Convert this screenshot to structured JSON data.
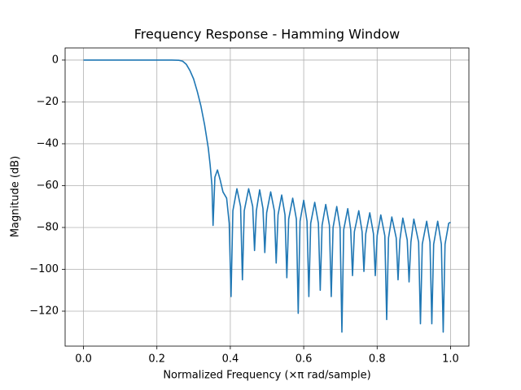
{
  "chart_data": {
    "type": "line",
    "title": "Frequency Response - Hamming Window",
    "x_label": "Normalized Frequency (×π rad/sample)",
    "y_label": "Magnitude (dB)",
    "xlim": [
      -0.05,
      1.05
    ],
    "ylim": [
      -136.7,
      5.8
    ],
    "xticks": [
      {
        "value": 0,
        "label": "0.0"
      },
      0.2,
      0.4,
      0.6,
      0.8,
      {
        "value": 1,
        "label": "1.0"
      }
    ],
    "yticks": [
      {
        "value": -120,
        "label": "−120"
      },
      {
        "value": -100,
        "label": "−100"
      },
      {
        "value": -80,
        "label": "−80"
      },
      {
        "value": -60,
        "label": "−60"
      },
      {
        "value": -40,
        "label": "−40"
      },
      {
        "value": -20,
        "label": "−20"
      },
      0
    ],
    "grid": true,
    "x": [
      0,
      0.05,
      0.1,
      0.15,
      0.2,
      0.24,
      0.26,
      0.27,
      0.28,
      0.29,
      0.3,
      0.31,
      0.32,
      0.33,
      0.34,
      0.345,
      0.35,
      0.353,
      0.358,
      0.365,
      0.372,
      0.38,
      0.39,
      0.397,
      0.402,
      0.407,
      0.418,
      0.428,
      0.433,
      0.438,
      0.45,
      0.461,
      0.466,
      0.471,
      0.48,
      0.489,
      0.494,
      0.499,
      0.51,
      0.52,
      0.525,
      0.53,
      0.54,
      0.549,
      0.554,
      0.559,
      0.57,
      0.58,
      0.585,
      0.59,
      0.6,
      0.609,
      0.614,
      0.619,
      0.63,
      0.64,
      0.645,
      0.65,
      0.66,
      0.67,
      0.675,
      0.68,
      0.69,
      0.699,
      0.704,
      0.709,
      0.72,
      0.728,
      0.733,
      0.738,
      0.75,
      0.759,
      0.764,
      0.769,
      0.78,
      0.79,
      0.795,
      0.8,
      0.81,
      0.821,
      0.826,
      0.831,
      0.84,
      0.852,
      0.857,
      0.862,
      0.87,
      0.882,
      0.887,
      0.892,
      0.9,
      0.913,
      0.918,
      0.923,
      0.935,
      0.944,
      0.949,
      0.954,
      0.965,
      0.975,
      0.98,
      0.985,
      0.995,
      1.0
    ],
    "series": [
      {
        "color": "#1f77b4",
        "values": [
          0,
          0,
          0,
          0,
          0,
          0,
          -0.1,
          -0.5,
          -2,
          -5,
          -9,
          -15,
          -22,
          -31,
          -42,
          -50,
          -60,
          -79,
          -56,
          -52.5,
          -57,
          -63,
          -66,
          -78,
          -113,
          -72,
          -61.5,
          -70,
          -105,
          -72,
          -61.5,
          -70,
          -91,
          -72,
          -62,
          -71,
          -92,
          -73,
          -63,
          -72,
          -97,
          -74,
          -64.5,
          -74,
          -104,
          -76,
          -66,
          -76,
          -121,
          -77,
          -67,
          -77,
          -113,
          -78,
          -68,
          -78,
          -110,
          -79,
          -69,
          -79,
          -113,
          -80,
          -70,
          -80,
          -130,
          -81,
          -71,
          -81,
          -103,
          -82,
          -72,
          -82,
          -101,
          -83,
          -73,
          -83,
          -103,
          -84,
          -74,
          -84,
          -124,
          -85,
          -75,
          -85,
          -105,
          -86,
          -75.5,
          -86,
          -106,
          -87,
          -76,
          -87,
          -126,
          -88,
          -77,
          -87,
          -126,
          -88,
          -77,
          -88,
          -130,
          -88,
          -78,
          -77.5
        ]
      }
    ]
  }
}
